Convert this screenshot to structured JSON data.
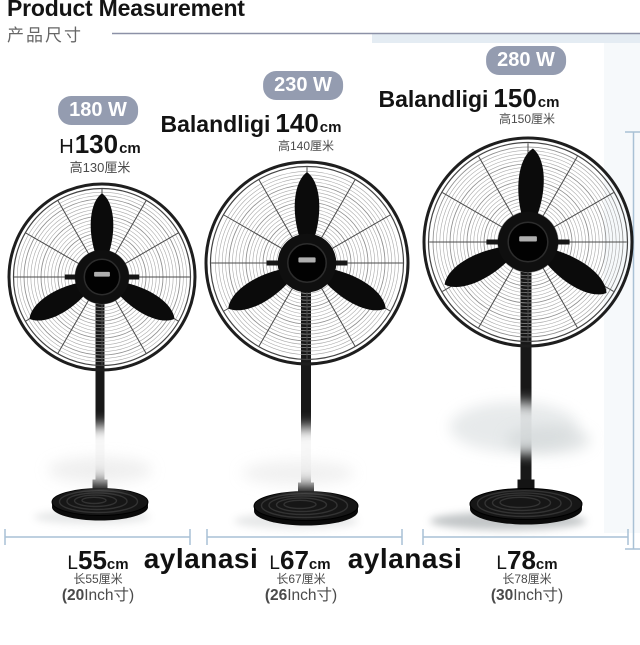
{
  "header": {
    "title": "Product Measurement",
    "subtitle": "产品尺寸"
  },
  "fans": [
    {
      "power": "180 W",
      "height_prefix": "H",
      "height_value": "130",
      "height_unit": "cm",
      "height_cn": "高130厘米",
      "length_prefix": "L",
      "length_value": "55",
      "length_unit": "cm",
      "length_cn": "长55厘米",
      "inch_bold": "(20",
      "inch_rest": "Inch寸)"
    },
    {
      "power": "230 W",
      "height_prefix": "Balandligi",
      "height_value": "140",
      "height_unit": "cm",
      "height_cn": "高140厘米",
      "length_prefix": "L",
      "length_value": "67",
      "length_unit": "cm",
      "length_cn": "长67厘米",
      "inch_bold": "(26",
      "inch_rest": "Inch寸)"
    },
    {
      "power": "280 W",
      "height_prefix": "Balandligi",
      "height_value": "150",
      "height_unit": "cm",
      "height_cn": "高150厘米",
      "length_prefix": "L",
      "length_value": "78",
      "length_unit": "cm",
      "length_cn": "长78厘米",
      "inch_bold": "(30",
      "inch_rest": "Inch寸)"
    }
  ],
  "annotations": {
    "circumference_1": "aylanasi",
    "circumference_2": "aylanasi"
  },
  "colors": {
    "badge_bg": "#949cb0",
    "badge_text": "#ffffff",
    "title_text": "#141414",
    "subtitle_text": "#666666",
    "muted_text": "#4a4a4a",
    "annotation_text": "#111111",
    "header_line": "#8c91a7",
    "dimension_line": "#a9c1d5",
    "highlight_band": "#dbe6ef",
    "right_tint": "#f2f6f9"
  }
}
